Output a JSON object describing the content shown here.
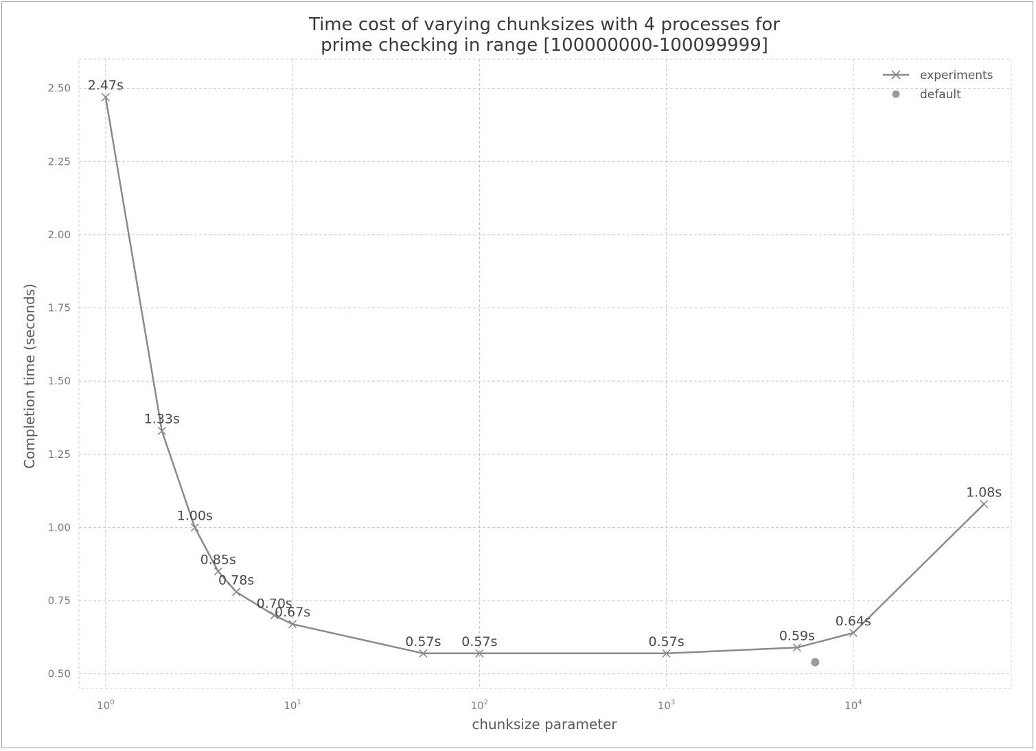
{
  "chart_data": {
    "type": "line",
    "title_line1": "Time cost of varying chunksizes with 4 processes for",
    "title_line2": "prime checking in range [100000000-100099999]",
    "xlabel": "chunksize parameter",
    "ylabel": "Completion time (seconds)",
    "xscale": "log",
    "xlim": [
      0.72,
      70000
    ],
    "ylim": [
      0.45,
      2.6
    ],
    "grid": true,
    "legend_position": "top-right",
    "x_ticks": [
      {
        "value": 1,
        "base": "10",
        "exp": "0"
      },
      {
        "value": 10,
        "base": "10",
        "exp": "1"
      },
      {
        "value": 100,
        "base": "10",
        "exp": "2"
      },
      {
        "value": 1000,
        "base": "10",
        "exp": "3"
      },
      {
        "value": 10000,
        "base": "10",
        "exp": "4"
      }
    ],
    "y_ticks": [
      {
        "value": 0.5,
        "label": "0.50"
      },
      {
        "value": 0.75,
        "label": "0.75"
      },
      {
        "value": 1.0,
        "label": "1.00"
      },
      {
        "value": 1.25,
        "label": "1.25"
      },
      {
        "value": 1.5,
        "label": "1.50"
      },
      {
        "value": 1.75,
        "label": "1.75"
      },
      {
        "value": 2.0,
        "label": "2.00"
      },
      {
        "value": 2.25,
        "label": "2.25"
      },
      {
        "value": 2.5,
        "label": "2.50"
      }
    ],
    "series": [
      {
        "name": "experiments",
        "color": "#8a8a8a",
        "marker": "x",
        "points": [
          {
            "x": 1,
            "y": 2.47,
            "label": "2.47s"
          },
          {
            "x": 2,
            "y": 1.33,
            "label": "1.33s"
          },
          {
            "x": 3,
            "y": 1.0,
            "label": "1.00s"
          },
          {
            "x": 4,
            "y": 0.85,
            "label": "0.85s"
          },
          {
            "x": 5,
            "y": 0.78,
            "label": "0.78s"
          },
          {
            "x": 8,
            "y": 0.7,
            "label": "0.70s"
          },
          {
            "x": 10,
            "y": 0.67,
            "label": "0.67s"
          },
          {
            "x": 50,
            "y": 0.57,
            "label": "0.57s"
          },
          {
            "x": 100,
            "y": 0.57,
            "label": "0.57s"
          },
          {
            "x": 1000,
            "y": 0.57,
            "label": "0.57s"
          },
          {
            "x": 5000,
            "y": 0.59,
            "label": "0.59s"
          },
          {
            "x": 10000,
            "y": 0.64,
            "label": "0.64s"
          },
          {
            "x": 50000,
            "y": 1.08,
            "label": "1.08s"
          }
        ]
      },
      {
        "name": "default",
        "color": "#9a9a9a",
        "marker": "o",
        "points": [
          {
            "x": 6250,
            "y": 0.54
          }
        ]
      }
    ]
  }
}
